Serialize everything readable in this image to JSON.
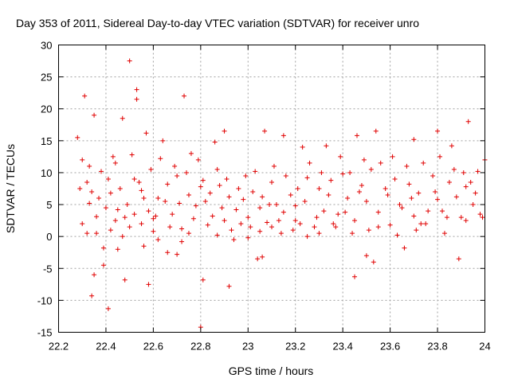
{
  "chart_data": {
    "type": "scatter",
    "title": "Day 353 of 2011, Sidereal Day-to-day VTEC variation (SDTVAR) for receiver unro",
    "xlabel": "GPS time / hours",
    "ylabel": "SDTVAR / TECUs",
    "xlim": [
      22.2,
      24
    ],
    "ylim": [
      -15,
      30
    ],
    "xticks": [
      22.2,
      22.4,
      22.6,
      22.8,
      23,
      23.2,
      23.4,
      23.6,
      23.8,
      24
    ],
    "xtick_labels": [
      "22.2",
      "22.4",
      "22.6",
      "22.8",
      "23",
      "23.2",
      "23.4",
      "23.6",
      "23.8",
      "24"
    ],
    "yticks": [
      -15,
      -10,
      -5,
      0,
      5,
      10,
      15,
      20,
      25,
      30
    ],
    "ytick_labels": [
      "-15",
      "-10",
      "-5",
      "0",
      "5",
      "10",
      "15",
      "20",
      "25",
      "30"
    ],
    "grid": true,
    "marker": "+",
    "color": "#e00000",
    "series": [
      {
        "name": "SDTVAR",
        "points": [
          [
            22.3,
            2.0
          ],
          [
            22.32,
            8.5
          ],
          [
            22.33,
            5.2
          ],
          [
            22.34,
            7.0
          ],
          [
            22.36,
            3.1
          ],
          [
            22.38,
            10.2
          ],
          [
            22.4,
            4.5
          ],
          [
            22.42,
            6.8
          ],
          [
            22.44,
            2.5
          ],
          [
            22.46,
            7.5
          ],
          [
            22.48,
            3.0
          ],
          [
            22.5,
            1.5
          ],
          [
            22.52,
            9.0
          ],
          [
            22.55,
            7.2
          ],
          [
            22.58,
            4.0
          ],
          [
            22.6,
            2.8
          ],
          [
            22.62,
            6.0
          ],
          [
            22.65,
            5.5
          ],
          [
            22.68,
            3.5
          ],
          [
            22.7,
            9.5
          ],
          [
            22.72,
            1.2
          ],
          [
            22.75,
            6.5
          ],
          [
            22.78,
            4.8
          ],
          [
            22.8,
            7.8
          ],
          [
            22.82,
            5.5
          ],
          [
            22.85,
            3.2
          ],
          [
            22.88,
            8.0
          ],
          [
            22.9,
            2.5
          ],
          [
            22.92,
            6.2
          ],
          [
            22.95,
            4.2
          ],
          [
            22.98,
            5.8
          ],
          [
            23.0,
            3.0
          ],
          [
            23.02,
            7.0
          ],
          [
            23.05,
            4.5
          ],
          [
            23.08,
            2.2
          ],
          [
            23.1,
            8.5
          ],
          [
            23.12,
            5.0
          ],
          [
            23.15,
            3.8
          ],
          [
            23.18,
            6.5
          ],
          [
            23.2,
            4.8
          ],
          [
            23.22,
            2.0
          ],
          [
            23.25,
            9.2
          ],
          [
            23.28,
            1.5
          ],
          [
            23.3,
            7.5
          ],
          [
            23.32,
            4.0
          ],
          [
            23.35,
            8.8
          ],
          [
            23.38,
            3.5
          ],
          [
            23.4,
            9.8
          ],
          [
            23.42,
            6.0
          ],
          [
            23.45,
            2.5
          ],
          [
            23.48,
            8.0
          ],
          [
            23.5,
            5.5
          ],
          [
            23.52,
            10.5
          ],
          [
            23.55,
            3.8
          ],
          [
            23.58,
            7.5
          ],
          [
            23.6,
            1.8
          ],
          [
            23.62,
            9.0
          ],
          [
            23.65,
            4.5
          ],
          [
            23.68,
            8.2
          ],
          [
            23.7,
            3.2
          ],
          [
            23.72,
            6.8
          ],
          [
            23.75,
            2.0
          ],
          [
            23.78,
            9.5
          ],
          [
            23.8,
            5.8
          ],
          [
            23.82,
            4.0
          ],
          [
            23.85,
            8.5
          ],
          [
            23.88,
            6.2
          ],
          [
            23.9,
            3.0
          ],
          [
            23.92,
            7.8
          ],
          [
            23.95,
            5.0
          ],
          [
            23.98,
            3.5
          ],
          [
            24.0,
            12.0
          ],
          [
            22.28,
            15.5
          ],
          [
            22.31,
            22.0
          ],
          [
            22.35,
            19.0
          ],
          [
            22.43,
            12.5
          ],
          [
            22.47,
            18.5
          ],
          [
            22.5,
            27.5
          ],
          [
            22.53,
            23.0
          ],
          [
            22.53,
            21.5
          ],
          [
            22.57,
            16.2
          ],
          [
            22.64,
            15.0
          ],
          [
            22.73,
            22.0
          ],
          [
            22.76,
            13.0
          ],
          [
            22.86,
            14.8
          ],
          [
            22.9,
            16.5
          ],
          [
            23.07,
            16.5
          ],
          [
            23.15,
            15.8
          ],
          [
            23.23,
            14.0
          ],
          [
            23.33,
            14.2
          ],
          [
            23.46,
            15.8
          ],
          [
            23.54,
            16.5
          ],
          [
            23.7,
            15.2
          ],
          [
            23.8,
            16.5
          ],
          [
            23.93,
            18.0
          ],
          [
            23.86,
            14.2
          ],
          [
            22.35,
            -6.0
          ],
          [
            22.34,
            -9.3
          ],
          [
            22.39,
            -4.5
          ],
          [
            22.41,
            -11.3
          ],
          [
            22.48,
            -6.8
          ],
          [
            22.58,
            -7.5
          ],
          [
            22.66,
            -2.5
          ],
          [
            22.81,
            -6.8
          ],
          [
            22.8,
            -14.2
          ],
          [
            22.92,
            -7.8
          ],
          [
            23.04,
            -3.5
          ],
          [
            23.06,
            -3.2
          ],
          [
            23.45,
            -6.3
          ],
          [
            23.5,
            -3.0
          ],
          [
            23.53,
            -4.0
          ],
          [
            23.66,
            -1.8
          ],
          [
            23.89,
            -3.5
          ],
          [
            22.45,
            -2.0
          ],
          [
            22.56,
            -1.5
          ],
          [
            22.7,
            -2.8
          ],
          [
            22.3,
            12.0
          ],
          [
            22.33,
            11.0
          ],
          [
            22.37,
            6.0
          ],
          [
            22.41,
            9.0
          ],
          [
            22.44,
            11.5
          ],
          [
            22.49,
            5.0
          ],
          [
            22.51,
            12.8
          ],
          [
            22.54,
            8.5
          ],
          [
            22.56,
            6.0
          ],
          [
            22.59,
            10.5
          ],
          [
            22.61,
            3.2
          ],
          [
            22.63,
            12.2
          ],
          [
            22.66,
            8.2
          ],
          [
            22.69,
            11.0
          ],
          [
            22.71,
            5.2
          ],
          [
            22.74,
            10.0
          ],
          [
            22.77,
            2.8
          ],
          [
            22.79,
            12.0
          ],
          [
            22.81,
            8.8
          ],
          [
            22.84,
            6.8
          ],
          [
            22.87,
            10.5
          ],
          [
            22.89,
            4.5
          ],
          [
            22.91,
            9.0
          ],
          [
            22.93,
            1.0
          ],
          [
            22.96,
            7.5
          ],
          [
            22.99,
            9.5
          ],
          [
            23.01,
            1.5
          ],
          [
            23.03,
            10.2
          ],
          [
            23.06,
            6.2
          ],
          [
            23.09,
            5.0
          ],
          [
            23.11,
            11.0
          ],
          [
            23.13,
            2.5
          ],
          [
            23.16,
            9.5
          ],
          [
            23.19,
            1.0
          ],
          [
            23.21,
            7.5
          ],
          [
            23.24,
            5.5
          ],
          [
            23.26,
            11.5
          ],
          [
            23.29,
            3.0
          ],
          [
            23.31,
            10.0
          ],
          [
            23.34,
            6.5
          ],
          [
            23.36,
            2.0
          ],
          [
            23.39,
            12.5
          ],
          [
            23.41,
            3.8
          ],
          [
            23.43,
            10.0
          ],
          [
            23.47,
            7.0
          ],
          [
            23.49,
            12.0
          ],
          [
            23.51,
            1.0
          ],
          [
            23.56,
            11.5
          ],
          [
            23.59,
            6.5
          ],
          [
            23.61,
            12.5
          ],
          [
            23.64,
            5.0
          ],
          [
            23.67,
            11.0
          ],
          [
            23.69,
            6.0
          ],
          [
            23.71,
            1.0
          ],
          [
            23.74,
            11.5
          ],
          [
            23.76,
            4.0
          ],
          [
            23.79,
            7.0
          ],
          [
            23.81,
            12.5
          ],
          [
            23.84,
            3.0
          ],
          [
            23.87,
            10.5
          ],
          [
            23.91,
            10.0
          ],
          [
            23.94,
            8.5
          ],
          [
            23.96,
            6.8
          ],
          [
            23.99,
            3.0
          ],
          [
            23.97,
            10.2
          ],
          [
            22.29,
            7.5
          ],
          [
            22.32,
            0.5
          ],
          [
            22.36,
            0.5
          ],
          [
            22.39,
            -1.8
          ],
          [
            22.42,
            1.0
          ],
          [
            22.45,
            4.2
          ],
          [
            22.47,
            0.0
          ],
          [
            22.52,
            3.5
          ],
          [
            22.55,
            2.0
          ],
          [
            22.6,
            0.8
          ],
          [
            22.62,
            -0.5
          ],
          [
            22.67,
            1.5
          ],
          [
            22.72,
            -0.8
          ],
          [
            22.75,
            0.5
          ],
          [
            22.83,
            1.8
          ],
          [
            22.87,
            0.2
          ],
          [
            22.94,
            -0.5
          ],
          [
            22.97,
            2.0
          ],
          [
            23.0,
            -0.2
          ],
          [
            23.05,
            0.8
          ],
          [
            23.1,
            1.5
          ],
          [
            23.14,
            0.5
          ],
          [
            23.2,
            2.5
          ],
          [
            23.25,
            0.0
          ],
          [
            23.3,
            0.5
          ],
          [
            23.37,
            1.5
          ],
          [
            23.44,
            0.5
          ],
          [
            23.55,
            1.5
          ],
          [
            23.63,
            0.2
          ],
          [
            23.73,
            2.0
          ],
          [
            23.83,
            0.5
          ],
          [
            23.92,
            2.5
          ]
        ]
      }
    ]
  }
}
